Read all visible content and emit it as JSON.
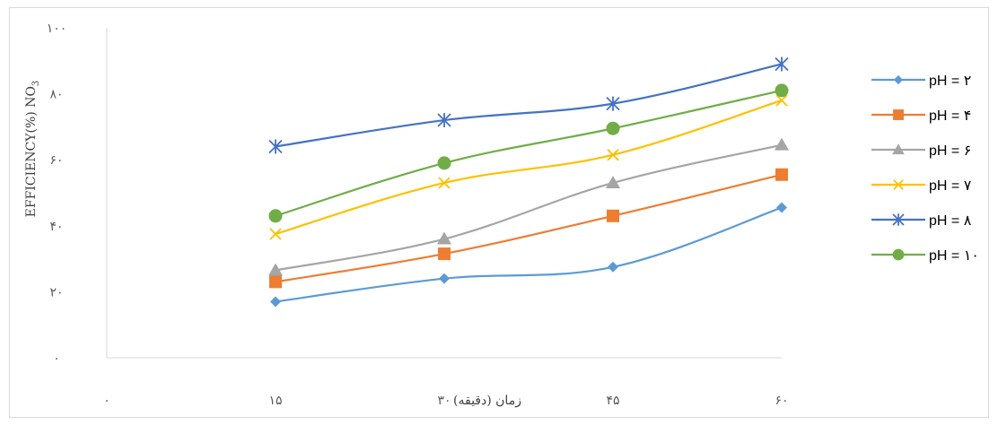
{
  "chart_data": {
    "type": "line",
    "xlabel": "زمان (دقیقه)",
    "ylabel": "EFFICIENCY(%) NO",
    "ylabel_subscript": "3",
    "x_tick_labels": [
      "۰",
      "۱۵",
      "۳۰",
      "۴۵",
      "۶۰"
    ],
    "y_tick_labels": [
      "۰",
      "۲۰",
      "۴۰",
      "۶۰",
      "۸۰",
      "۱۰۰"
    ],
    "x": [
      15,
      30,
      45,
      60
    ],
    "xlim": [
      0,
      60
    ],
    "ylim": [
      0,
      100
    ],
    "grid": false,
    "legend_position": "right",
    "series": [
      {
        "name": "pH = ۲",
        "values": [
          17,
          24,
          27.5,
          45.5
        ],
        "color": "#5b9bd5",
        "marker": "diamond"
      },
      {
        "name": "pH = ۴",
        "values": [
          23,
          31.5,
          43,
          55.5
        ],
        "color": "#ed7d31",
        "marker": "square"
      },
      {
        "name": "pH = ۶",
        "values": [
          26.5,
          36,
          53,
          64.5
        ],
        "color": "#a5a5a5",
        "marker": "triangle"
      },
      {
        "name": "pH = ۷",
        "values": [
          37.5,
          53,
          61.5,
          78
        ],
        "color": "#ffc000",
        "marker": "x"
      },
      {
        "name": "pH = ۸",
        "values": [
          64,
          72,
          77,
          89
        ],
        "color": "#4472c4",
        "marker": "star"
      },
      {
        "name": "pH = ۱۰",
        "values": [
          43,
          59,
          69.5,
          81
        ],
        "color": "#70ad47",
        "marker": "circle"
      }
    ]
  }
}
